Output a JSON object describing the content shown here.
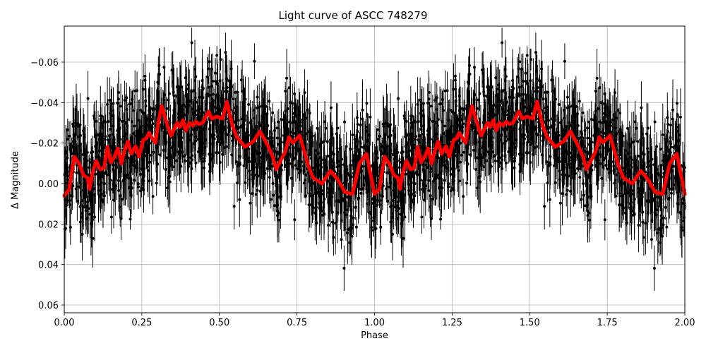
{
  "chart_data": {
    "type": "scatter",
    "title": "Light curve of ASCC 748279",
    "xlabel": "Phase",
    "ylabel": "Δ Magnitude",
    "xlim": [
      0.0,
      2.0
    ],
    "ylim": [
      0.063,
      -0.078
    ],
    "y_inverted": true,
    "grid": true,
    "xticks": [
      "0.00",
      "0.25",
      "0.50",
      "0.75",
      "1.00",
      "1.25",
      "1.50",
      "1.75",
      "2.00"
    ],
    "xtick_values": [
      0.0,
      0.25,
      0.5,
      0.75,
      1.0,
      1.25,
      1.5,
      1.75,
      2.0
    ],
    "yticks": [
      "−0.06",
      "−0.04",
      "−0.02",
      "0.00",
      "0.02",
      "0.04",
      "0.06"
    ],
    "ytick_values": [
      -0.06,
      -0.04,
      -0.02,
      0.0,
      0.02,
      0.04,
      0.06
    ],
    "series": [
      {
        "name": "observations",
        "kind": "errorbar-scatter",
        "color": "#000000",
        "description": "Dense black points with vertical error bars spanning roughly -0.07 to +0.06, centered around the binned curve; phase-folded data repeated over two cycles"
      },
      {
        "name": "binned model",
        "kind": "line",
        "color": "#ff0000",
        "line_width": 5,
        "x": [
          0.0,
          0.016,
          0.032,
          0.048,
          0.062,
          0.075,
          0.082,
          0.091,
          0.103,
          0.116,
          0.128,
          0.139,
          0.15,
          0.162,
          0.173,
          0.184,
          0.194,
          0.205,
          0.216,
          0.23,
          0.241,
          0.255,
          0.264,
          0.273,
          0.285,
          0.294,
          0.303,
          0.314,
          0.33,
          0.344,
          0.364,
          0.373,
          0.383,
          0.392,
          0.403,
          0.415,
          0.424,
          0.435,
          0.446,
          0.453,
          0.465,
          0.476,
          0.492,
          0.51,
          0.524,
          0.542,
          0.556,
          0.583,
          0.61,
          0.631,
          0.649,
          0.66,
          0.672,
          0.683,
          0.713,
          0.724,
          0.736,
          0.759,
          0.786,
          0.802,
          0.831,
          0.858,
          0.881,
          0.904,
          0.929,
          0.951,
          0.974,
          1.0
        ],
        "y": [
          0.006,
          0.0028,
          -0.0133,
          -0.0098,
          -0.0042,
          -0.0028,
          0.0028,
          -0.0052,
          -0.0112,
          -0.007,
          -0.0077,
          -0.0181,
          -0.0105,
          -0.0133,
          -0.0174,
          -0.0098,
          -0.016,
          -0.0209,
          -0.0147,
          -0.0185,
          -0.0133,
          -0.0216,
          -0.0223,
          -0.0251,
          -0.022,
          -0.0202,
          -0.03,
          -0.0384,
          -0.03,
          -0.0237,
          -0.03,
          -0.0279,
          -0.0314,
          -0.0262,
          -0.03,
          -0.0286,
          -0.0307,
          -0.0293,
          -0.03,
          -0.0321,
          -0.0356,
          -0.0321,
          -0.0331,
          -0.0321,
          -0.0405,
          -0.0286,
          -0.023,
          -0.0181,
          -0.0209,
          -0.0258,
          -0.0209,
          -0.0174,
          -0.0133,
          -0.007,
          -0.016,
          -0.023,
          -0.0202,
          -0.0237,
          -0.009,
          -0.0028,
          0.0,
          -0.0063,
          -0.0021,
          0.0042,
          0.0052,
          -0.0098,
          -0.0147,
          0.0052
        ]
      }
    ],
    "legend": null
  }
}
